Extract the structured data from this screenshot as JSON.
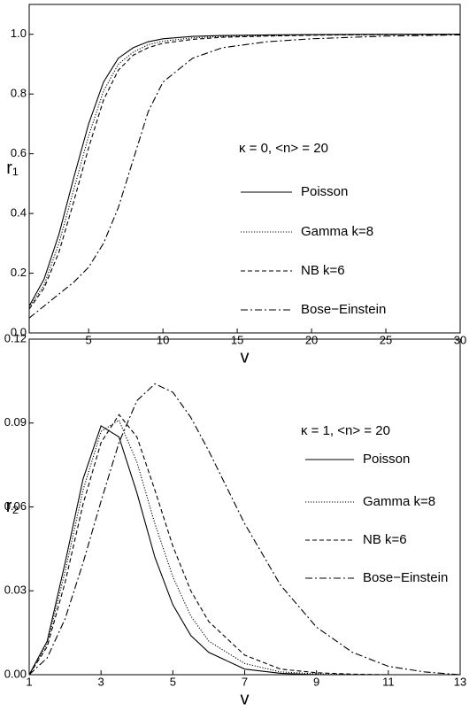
{
  "chart_data": [
    {
      "type": "line",
      "y_label": "r₁",
      "x_label": "v",
      "annotation": "κ = 0, <n> = 20",
      "x": [
        1,
        2,
        3,
        4,
        5,
        6,
        7,
        8,
        9,
        10,
        12,
        14,
        17,
        20,
        25,
        30
      ],
      "xlim": [
        1,
        30
      ],
      "xticks": [
        5,
        10,
        15,
        20,
        25,
        30
      ],
      "ylim": [
        0,
        1.1
      ],
      "yticks": [
        {
          "value": 0,
          "label": "0.0"
        },
        0.2,
        0.4,
        0.6,
        0.8,
        {
          "value": 1,
          "label": "1.0"
        }
      ],
      "series": [
        {
          "name": "Poisson",
          "color": "#000000",
          "dash": "solid",
          "values": [
            0.09,
            0.18,
            0.33,
            0.52,
            0.7,
            0.84,
            0.92,
            0.955,
            0.975,
            0.985,
            0.993,
            0.996,
            0.998,
            0.999,
            1.0,
            1.0
          ]
        },
        {
          "name": "Gamma k=8",
          "color": "#000000",
          "dash": "dotted",
          "values": [
            0.085,
            0.16,
            0.3,
            0.48,
            0.66,
            0.81,
            0.9,
            0.94,
            0.965,
            0.977,
            0.988,
            0.993,
            0.996,
            0.998,
            0.999,
            1.0
          ]
        },
        {
          "name": "NB  k=6",
          "color": "#000000",
          "dash": "dashed",
          "values": [
            0.08,
            0.15,
            0.27,
            0.44,
            0.62,
            0.78,
            0.88,
            0.93,
            0.955,
            0.97,
            0.983,
            0.99,
            0.994,
            0.997,
            0.999,
            1.0
          ]
        },
        {
          "name": "Bose−Einstein",
          "color": "#000000",
          "dash": "dashdot",
          "values": [
            0.05,
            0.09,
            0.13,
            0.17,
            0.22,
            0.3,
            0.42,
            0.58,
            0.74,
            0.84,
            0.92,
            0.955,
            0.975,
            0.985,
            0.994,
            0.998
          ]
        }
      ]
    },
    {
      "type": "line",
      "y_label": "r₂",
      "x_label": "v",
      "annotation": "κ = 1, <n> = 20",
      "x": [
        1,
        1.5,
        2,
        2.5,
        3,
        3.5,
        4,
        4.5,
        5,
        5.5,
        6,
        7,
        8,
        9,
        10,
        11,
        12,
        13
      ],
      "xlim": [
        1,
        13
      ],
      "xticks": [
        1,
        3,
        5,
        7,
        9,
        11,
        13
      ],
      "ylim": [
        0,
        0.12
      ],
      "yticks": [
        {
          "value": 0,
          "label": "0.00"
        },
        0.03,
        0.06,
        0.09,
        0.12
      ],
      "series": [
        {
          "name": "Poisson",
          "color": "#000000",
          "dash": "solid",
          "values": [
            0,
            0.012,
            0.04,
            0.07,
            0.089,
            0.085,
            0.065,
            0.042,
            0.025,
            0.014,
            0.008,
            0.002,
            0.0005,
            0,
            0,
            0,
            0,
            0
          ]
        },
        {
          "name": "Gamma k=8",
          "color": "#000000",
          "dash": "dotted",
          "values": [
            0,
            0.011,
            0.037,
            0.066,
            0.087,
            0.091,
            0.076,
            0.054,
            0.035,
            0.021,
            0.012,
            0.004,
            0.001,
            0.0003,
            0,
            0,
            0,
            0
          ]
        },
        {
          "name": "NB k=6",
          "color": "#000000",
          "dash": "dashed",
          "values": [
            0,
            0.01,
            0.033,
            0.061,
            0.083,
            0.093,
            0.085,
            0.066,
            0.046,
            0.03,
            0.019,
            0.007,
            0.002,
            0.0007,
            0.0002,
            0,
            0,
            0
          ]
        },
        {
          "name": "Bose−Einstein",
          "color": "#000000",
          "dash": "dashdot",
          "values": [
            0,
            0.006,
            0.02,
            0.04,
            0.062,
            0.083,
            0.098,
            0.104,
            0.101,
            0.092,
            0.08,
            0.054,
            0.032,
            0.017,
            0.008,
            0.003,
            0.001,
            0
          ]
        }
      ]
    }
  ]
}
